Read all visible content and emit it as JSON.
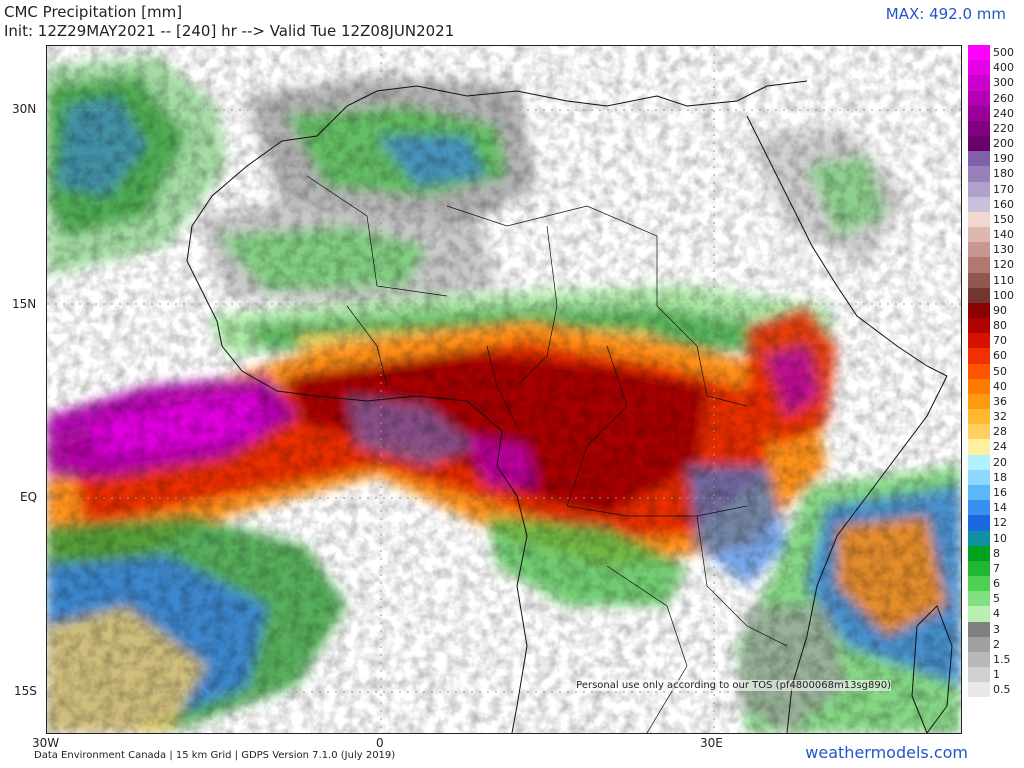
{
  "header": {
    "title": "CMC Precipitation [mm]",
    "subtitle": "Init: 12Z29MAY2021 -- [240] hr --> Valid Tue 12Z08JUN2021",
    "max_label": "MAX: 492.0 mm"
  },
  "map": {
    "lat_labels": [
      "30N",
      "15N",
      "EQ",
      "15S"
    ],
    "lon_labels": [
      "30W",
      "0",
      "30E"
    ],
    "tos_note": "Personal use only according to our TOS (pf4800068m13sg890)"
  },
  "footer": {
    "credit": "Data Environment Canada | 15 km Grid | GDPS Version 7.1.0 (July 2019)",
    "site": "weathermodels.com"
  },
  "legend": {
    "entries": [
      {
        "label": "500",
        "color": "#ff00ff"
      },
      {
        "label": "400",
        "color": "#e600e6"
      },
      {
        "label": "300",
        "color": "#cc00cc"
      },
      {
        "label": "260",
        "color": "#b300b3"
      },
      {
        "label": "240",
        "color": "#990099"
      },
      {
        "label": "220",
        "color": "#800080"
      },
      {
        "label": "200",
        "color": "#6a006a"
      },
      {
        "label": "190",
        "color": "#8060a8"
      },
      {
        "label": "180",
        "color": "#9880b8"
      },
      {
        "label": "170",
        "color": "#b0a0cc"
      },
      {
        "label": "160",
        "color": "#c8c0dc"
      },
      {
        "label": "150",
        "color": "#f0d8d0"
      },
      {
        "label": "140",
        "color": "#dcb8b0"
      },
      {
        "label": "130",
        "color": "#c89890"
      },
      {
        "label": "120",
        "color": "#b07870"
      },
      {
        "label": "110",
        "color": "#905850"
      },
      {
        "label": "100",
        "color": "#703830"
      },
      {
        "label": "90",
        "color": "#8b0000"
      },
      {
        "label": "80",
        "color": "#b00000"
      },
      {
        "label": "70",
        "color": "#d81000"
      },
      {
        "label": "60",
        "color": "#f03000"
      },
      {
        "label": "50",
        "color": "#ff5500"
      },
      {
        "label": "40",
        "color": "#ff7a00"
      },
      {
        "label": "36",
        "color": "#ff9a10"
      },
      {
        "label": "32",
        "color": "#ffb830"
      },
      {
        "label": "28",
        "color": "#ffd060"
      },
      {
        "label": "24",
        "color": "#fff0a0"
      },
      {
        "label": "20",
        "color": "#b0f0ff"
      },
      {
        "label": "18",
        "color": "#8cd8ff"
      },
      {
        "label": "16",
        "color": "#5cb8f8"
      },
      {
        "label": "14",
        "color": "#3890f0"
      },
      {
        "label": "12",
        "color": "#1c68e0"
      },
      {
        "label": "10",
        "color": "#1090a0"
      },
      {
        "label": "8",
        "color": "#00a020"
      },
      {
        "label": "7",
        "color": "#20b830"
      },
      {
        "label": "6",
        "color": "#50d050"
      },
      {
        "label": "5",
        "color": "#80e080"
      },
      {
        "label": "4",
        "color": "#b8f0b0"
      },
      {
        "label": "3",
        "color": "#808080"
      },
      {
        "label": "2",
        "color": "#a0a0a0"
      },
      {
        "label": "1.5",
        "color": "#b8b8b8"
      },
      {
        "label": "1",
        "color": "#d0d0d0"
      },
      {
        "label": "0.5",
        "color": "#e8e8e8"
      }
    ]
  }
}
